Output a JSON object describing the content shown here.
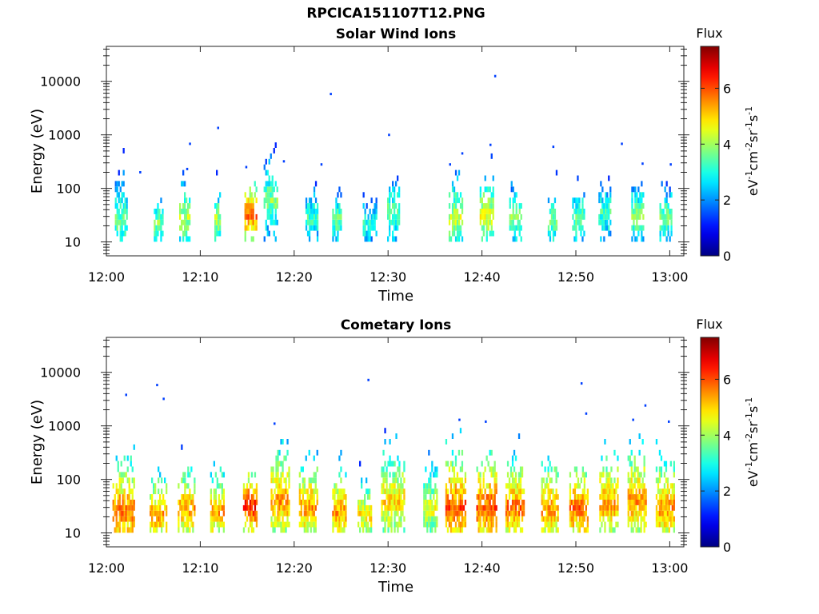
{
  "figure": {
    "title": "RPCICA151107T12.PNG"
  },
  "chart_data": [
    {
      "type": "heatmap",
      "title": "Solar Wind Ions",
      "xlabel": "Time",
      "ylabel": "Energy (eV)",
      "x_ticks": [
        "12:00",
        "12:10",
        "12:20",
        "12:30",
        "12:40",
        "12:50",
        "13:00"
      ],
      "xlim_minutes": [
        0,
        61.5
      ],
      "y_ticks": [
        "10",
        "100",
        "1000",
        "10000"
      ],
      "y_scale": "log",
      "ylim": [
        5.5,
        45000
      ],
      "colorbar": {
        "label": "Flux",
        "unit": "eV-1cm-2sr-1s-1",
        "ticks": [
          "0",
          "2",
          "4",
          "6"
        ],
        "range": [
          0,
          7.5
        ],
        "colormap": "jet"
      },
      "bursts": [
        {
          "t": 1.5,
          "w": 1.2,
          "e": 25,
          "flux": 3.6,
          "spread": 3.5
        },
        {
          "t": 5.5,
          "w": 0.9,
          "e": 22,
          "flux": 3.8,
          "spread": 2.0
        },
        {
          "t": 8.3,
          "w": 1.1,
          "e": 30,
          "flux": 4.3,
          "spread": 2.5
        },
        {
          "t": 11.8,
          "w": 0.6,
          "e": 25,
          "flux": 4.2,
          "spread": 1.8
        },
        {
          "t": 15.3,
          "w": 1.2,
          "e": 32,
          "flux": 5.8,
          "spread": 2.5
        },
        {
          "t": 17.5,
          "w": 1.5,
          "e": 60,
          "flux": 3.8,
          "spread": 3.0
        },
        {
          "t": 21.8,
          "w": 1.2,
          "e": 28,
          "flux": 3.3,
          "spread": 2.0
        },
        {
          "t": 24.5,
          "w": 0.9,
          "e": 25,
          "flux": 3.6,
          "spread": 2.0
        },
        {
          "t": 28.0,
          "w": 1.4,
          "e": 22,
          "flux": 3.1,
          "spread": 1.7
        },
        {
          "t": 30.5,
          "w": 1.2,
          "e": 35,
          "flux": 3.6,
          "spread": 2.5
        },
        {
          "t": 37.2,
          "w": 1.5,
          "e": 28,
          "flux": 4.3,
          "spread": 3.0
        },
        {
          "t": 40.5,
          "w": 1.5,
          "e": 30,
          "flux": 4.6,
          "spread": 3.0
        },
        {
          "t": 43.5,
          "w": 1.2,
          "e": 28,
          "flux": 3.8,
          "spread": 2.0
        },
        {
          "t": 47.5,
          "w": 1.0,
          "e": 25,
          "flux": 3.8,
          "spread": 2.0
        },
        {
          "t": 50.2,
          "w": 1.2,
          "e": 28,
          "flux": 3.6,
          "spread": 2.0
        },
        {
          "t": 53.0,
          "w": 1.2,
          "e": 35,
          "flux": 3.3,
          "spread": 2.5
        },
        {
          "t": 56.5,
          "w": 1.2,
          "e": 30,
          "flux": 3.8,
          "spread": 2.5
        },
        {
          "t": 59.5,
          "w": 1.2,
          "e": 28,
          "flux": 3.8,
          "spread": 2.0
        }
      ],
      "sparse_points": [
        {
          "t": 3.5,
          "e": 200
        },
        {
          "t": 8.8,
          "e": 680
        },
        {
          "t": 11.8,
          "e": 1350
        },
        {
          "t": 23.8,
          "e": 5800
        },
        {
          "t": 30.0,
          "e": 1000
        },
        {
          "t": 37.8,
          "e": 450
        },
        {
          "t": 41.3,
          "e": 12500
        },
        {
          "t": 47.5,
          "e": 600
        },
        {
          "t": 54.8,
          "e": 680
        },
        {
          "t": 8.5,
          "e": 230
        },
        {
          "t": 14.8,
          "e": 250
        },
        {
          "t": 18.8,
          "e": 320
        },
        {
          "t": 22.8,
          "e": 280
        },
        {
          "t": 36.5,
          "e": 280
        },
        {
          "t": 40.8,
          "e": 650
        },
        {
          "t": 57.0,
          "e": 290
        },
        {
          "t": 60.0,
          "e": 280
        }
      ]
    },
    {
      "type": "heatmap",
      "title": "Cometary Ions",
      "xlabel": "Time",
      "ylabel": "Energy (eV)",
      "x_ticks": [
        "12:00",
        "12:10",
        "12:20",
        "12:30",
        "12:40",
        "12:50",
        "13:00"
      ],
      "xlim_minutes": [
        0,
        61.5
      ],
      "y_ticks": [
        "10",
        "100",
        "1000",
        "10000"
      ],
      "y_scale": "log",
      "ylim": [
        5.5,
        45000
      ],
      "colorbar": {
        "label": "Flux",
        "unit": "eV-1cm-2sr-1s-1",
        "ticks": [
          "0",
          "2",
          "4",
          "6"
        ],
        "range": [
          0,
          7.5
        ],
        "colormap": "jet"
      },
      "bursts": [
        {
          "t": 1.8,
          "w": 2.3,
          "e": 25,
          "flux": 5.8,
          "spread": 6.0
        },
        {
          "t": 5.5,
          "w": 1.8,
          "e": 22,
          "flux": 5.5,
          "spread": 3.5
        },
        {
          "t": 8.5,
          "w": 1.8,
          "e": 28,
          "flux": 5.5,
          "spread": 4.0
        },
        {
          "t": 11.8,
          "w": 1.5,
          "e": 25,
          "flux": 5.5,
          "spread": 3.5
        },
        {
          "t": 15.3,
          "w": 1.5,
          "e": 32,
          "flux": 6.5,
          "spread": 3.0
        },
        {
          "t": 18.5,
          "w": 2.0,
          "e": 40,
          "flux": 5.5,
          "spread": 6.0
        },
        {
          "t": 21.5,
          "w": 2.0,
          "e": 30,
          "flux": 5.5,
          "spread": 5.0
        },
        {
          "t": 24.8,
          "w": 1.5,
          "e": 25,
          "flux": 5.5,
          "spread": 4.0
        },
        {
          "t": 27.5,
          "w": 1.5,
          "e": 22,
          "flux": 5.0,
          "spread": 2.5
        },
        {
          "t": 30.5,
          "w": 2.5,
          "e": 40,
          "flux": 5.0,
          "spread": 6.0
        },
        {
          "t": 34.5,
          "w": 1.5,
          "e": 28,
          "flux": 4.5,
          "spread": 4.0
        },
        {
          "t": 37.2,
          "w": 2.2,
          "e": 30,
          "flux": 6.0,
          "spread": 8.0
        },
        {
          "t": 40.5,
          "w": 2.2,
          "e": 30,
          "flux": 6.0,
          "spread": 7.0
        },
        {
          "t": 43.5,
          "w": 2.0,
          "e": 30,
          "flux": 5.8,
          "spread": 5.0
        },
        {
          "t": 47.2,
          "w": 1.8,
          "e": 28,
          "flux": 5.5,
          "spread": 5.0
        },
        {
          "t": 50.3,
          "w": 2.0,
          "e": 28,
          "flux": 5.8,
          "spread": 5.0
        },
        {
          "t": 53.5,
          "w": 2.0,
          "e": 35,
          "flux": 5.5,
          "spread": 6.0
        },
        {
          "t": 56.5,
          "w": 2.0,
          "e": 40,
          "flux": 5.5,
          "spread": 7.0
        },
        {
          "t": 59.5,
          "w": 2.0,
          "e": 30,
          "flux": 5.5,
          "spread": 6.0
        }
      ],
      "sparse_points": [
        {
          "t": 2.0,
          "e": 3800
        },
        {
          "t": 5.3,
          "e": 5800
        },
        {
          "t": 6.0,
          "e": 3200
        },
        {
          "t": 27.8,
          "e": 7200
        },
        {
          "t": 50.5,
          "e": 6200
        },
        {
          "t": 51.0,
          "e": 1700
        },
        {
          "t": 17.8,
          "e": 1100
        },
        {
          "t": 37.5,
          "e": 1300
        },
        {
          "t": 40.3,
          "e": 1200
        },
        {
          "t": 56.0,
          "e": 1300
        },
        {
          "t": 57.3,
          "e": 2400
        },
        {
          "t": 59.8,
          "e": 1200
        }
      ]
    }
  ]
}
